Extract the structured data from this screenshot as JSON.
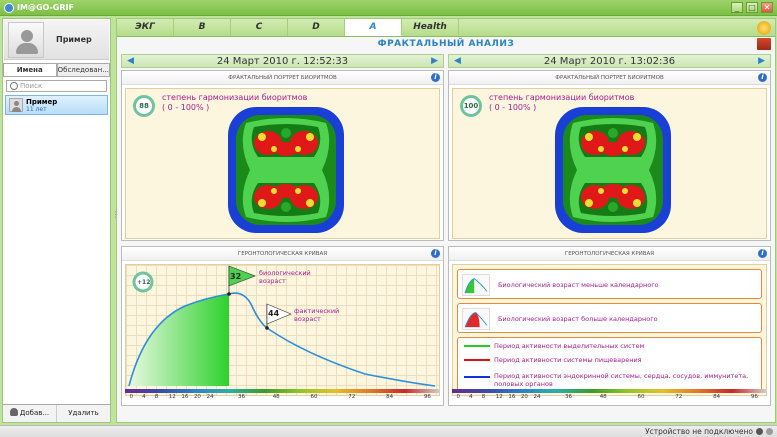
{
  "window": {
    "title": "IM@GO-GRIF",
    "min_label": "_",
    "max_label": "□",
    "close_label": "✕"
  },
  "sidebar": {
    "profile_name": "Пример",
    "tabs": [
      {
        "label": "Имена"
      },
      {
        "label": "Обследован..."
      }
    ],
    "search_placeholder": "Поиск",
    "patients": [
      {
        "name": "Пример",
        "age": "11 лет"
      }
    ],
    "add_label": "Добав...",
    "delete_label": "Удалить"
  },
  "main": {
    "tabs": [
      {
        "label": "ЭКГ"
      },
      {
        "label": "B"
      },
      {
        "label": "C"
      },
      {
        "label": "D"
      },
      {
        "label": "A"
      },
      {
        "label": "Health"
      }
    ],
    "active_tab": "A",
    "title": "ФРАКТАЛЬНЫЙ АНАЛИЗ",
    "left": {
      "date": "24 Март 2010 г. 12:52:33",
      "fractal_title": "ФРАКТАЛЬНЫЙ ПОРТРЕТ БИОРИТМОВ",
      "score": "88",
      "score_label": "степень гармонизации биоритмов",
      "score_range": "( 0 - 100% )",
      "curve_title": "ГЕРОНТОЛОГИЧЕСКАЯ КРИВАЯ",
      "age_delta": "+12",
      "bio_age": "32",
      "bio_age_label_1": "биологический",
      "bio_age_label_2": "возраст",
      "actual_age": "44",
      "actual_age_label_1": "фактический",
      "actual_age_label_2": "возраст"
    },
    "right": {
      "date": "24 Март 2010 г. 13:02:36",
      "fractal_title": "ФРАКТАЛЬНЫЙ ПОРТРЕТ БИОРИТМОВ",
      "score": "100",
      "score_label": "степень гармонизации биоритмов",
      "score_range": "( 0 - 100% )",
      "curve_title": "ГЕРОНТОЛОГИЧЕСКАЯ КРИВАЯ",
      "legend": {
        "younger": "Биологический возраст меньше календарного",
        "older": "Биологический возраст больше календарного",
        "lines": [
          {
            "label": "Период активности выделительных систем",
            "color": "#22cc22"
          },
          {
            "label": "Период активности системы пищеварения",
            "color": "#dd1111"
          },
          {
            "label": "Период активности эндокринной системы, сердца, сосудов, иммунитета, половых органов",
            "color": "#1133dd"
          }
        ]
      }
    },
    "age_ticks": [
      "0",
      "4",
      "8",
      "12",
      "16",
      "20",
      "24",
      "36",
      "48",
      "60",
      "72",
      "84",
      "96"
    ]
  },
  "status": {
    "text": "Устройство не подключено"
  }
}
